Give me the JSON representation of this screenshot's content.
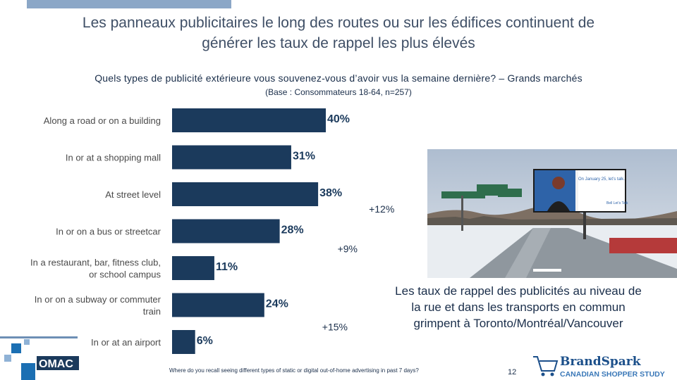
{
  "slide": {
    "title_line1": "Les panneaux publicitaires le long des routes ou sur les édifices continuent de",
    "title_line2": "générer les taux de rappel les plus élevés",
    "question": "Quels types de publicité extérieure vous souvenez-vous d’avoir vus la semaine dernière? – Grands marchés",
    "base": "(Base : Consommateurs 18-64, n=257)",
    "callout_line1": "Les taux de rappel des publicités au niveau de",
    "callout_line2": "la rue et dans les transports en commun",
    "callout_line3": "grimpent à Toronto/Montréal/Vancouver",
    "footnote": "Where do you recall seeing different types of static or digital out-of-home advertising in past 7 days?",
    "page_number": "12",
    "billboard_text": "On January 25, let’s talk.",
    "billboard_brand": "Bell Let’s Talk",
    "omac_logo_text": "OMAC",
    "brandspark_logo_line1": "BrandSpark",
    "brandspark_logo_line2": "CANADIAN SHOPPER STUDY"
  },
  "colors": {
    "bar": "#1b3a5c",
    "title": "#3f4f66",
    "text_dark": "#1a2e4a"
  },
  "chart_data": {
    "type": "bar",
    "orientation": "horizontal",
    "categories": [
      [
        "Along a road or on a building"
      ],
      [
        "In or at a shopping mall"
      ],
      [
        "At street level"
      ],
      [
        "In or on a bus or streetcar"
      ],
      [
        "In a restaurant, bar, fitness club,",
        "or school campus"
      ],
      [
        "In or on a subway or commuter",
        "train"
      ],
      [
        "In or at an airport"
      ]
    ],
    "values": [
      40,
      31,
      38,
      28,
      11,
      24,
      6
    ],
    "value_labels": [
      "40%",
      "31%",
      "38%",
      "28%",
      "11%",
      "24%",
      "6%"
    ],
    "xlim": [
      0,
      40
    ],
    "annotations": [
      {
        "text": "+12%",
        "category_index": 2
      },
      {
        "text": "+9%",
        "category_index": 3
      },
      {
        "text": "+15%",
        "category_index": 5
      }
    ],
    "title": "",
    "xlabel": "",
    "ylabel": "",
    "grid": false,
    "legend": "none"
  }
}
